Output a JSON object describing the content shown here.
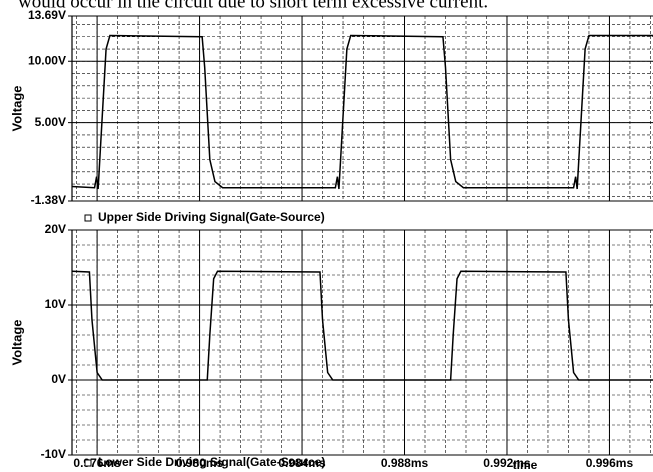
{
  "caption": "would occur in the circuit due to short term excessive current.",
  "chart_data": [
    {
      "type": "line",
      "y_label": "Voltage",
      "ylim": [
        -1.38,
        13.69
      ],
      "yticks": [
        {
          "value": 13.69,
          "label": "13.69V"
        },
        {
          "value": 10,
          "label": "10.00V"
        },
        {
          "value": 5,
          "label": "5.00V"
        },
        {
          "value": -1.38,
          "label": "-1.38V"
        }
      ],
      "xlim": [
        0.97502,
        0.9977
      ],
      "x": [
        0.97502,
        0.9759,
        0.97598,
        0.97604,
        0.9762,
        0.97635,
        0.9765,
        0.9801,
        0.9802,
        0.9804,
        0.9806,
        0.9809,
        0.9853,
        0.98538,
        0.98544,
        0.9856,
        0.98575,
        0.9859,
        0.9895,
        0.9896,
        0.9898,
        0.99,
        0.9903,
        0.9946,
        0.99468,
        0.99474,
        0.9949,
        0.99505,
        0.9952,
        0.9977
      ],
      "series": [
        {
          "name": "Upper Side Driving Signal(Gate-Source)",
          "color": "#000000",
          "values": [
            -0.2,
            -0.3,
            0.6,
            -0.4,
            5.5,
            11,
            12.1,
            12.0,
            9.5,
            2,
            0.2,
            -0.3,
            -0.3,
            0.6,
            -0.4,
            5.5,
            11,
            12.1,
            12.0,
            9.5,
            2,
            0.2,
            -0.3,
            -0.3,
            0.6,
            -0.4,
            5.5,
            11,
            12.1,
            12.1
          ]
        }
      ],
      "grid": true
    },
    {
      "type": "line",
      "y_label": "Voltage",
      "x_label": "time",
      "ylim": [
        -10,
        20
      ],
      "yticks": [
        {
          "value": 20,
          "label": "20V"
        },
        {
          "value": 10,
          "label": "10V"
        },
        {
          "value": 0,
          "label": "0V"
        },
        {
          "value": -10,
          "label": "-10V"
        }
      ],
      "xlim": [
        0.97502,
        0.9977
      ],
      "xticks": [
        {
          "value": 0.976,
          "label": "0.976ms"
        },
        {
          "value": 0.98,
          "label": "0.980ms"
        },
        {
          "value": 0.984,
          "label": "0.984ms"
        },
        {
          "value": 0.988,
          "label": "0.988ms"
        },
        {
          "value": 0.992,
          "label": "0.992ms"
        },
        {
          "value": 0.996,
          "label": "0.996ms"
        }
      ],
      "x": [
        0.97502,
        0.9757,
        0.9758,
        0.976,
        0.9762,
        0.9803,
        0.9804,
        0.98055,
        0.9807,
        0.9847,
        0.9848,
        0.985,
        0.9852,
        0.9898,
        0.9899,
        0.99005,
        0.9902,
        0.9943,
        0.9944,
        0.9946,
        0.9948,
        0.9977
      ],
      "series": [
        {
          "name": "Lower Side Driving Signal(Gate-Source)",
          "color": "#000000",
          "values": [
            14.5,
            14.4,
            8,
            1,
            0,
            0,
            6,
            13.5,
            14.5,
            14.4,
            8,
            1,
            0,
            0,
            6,
            13.5,
            14.5,
            14.4,
            8,
            1,
            0,
            0
          ]
        }
      ],
      "grid": true
    }
  ]
}
